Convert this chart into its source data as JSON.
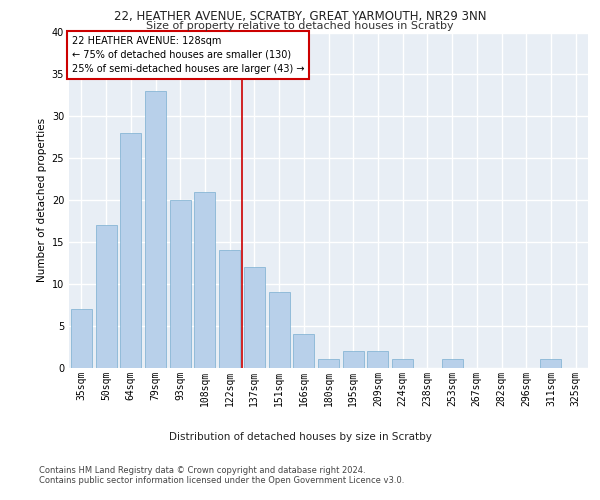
{
  "title1": "22, HEATHER AVENUE, SCRATBY, GREAT YARMOUTH, NR29 3NN",
  "title2": "Size of property relative to detached houses in Scratby",
  "xlabel": "Distribution of detached houses by size in Scratby",
  "ylabel": "Number of detached properties",
  "categories": [
    "35sqm",
    "50sqm",
    "64sqm",
    "79sqm",
    "93sqm",
    "108sqm",
    "122sqm",
    "137sqm",
    "151sqm",
    "166sqm",
    "180sqm",
    "195sqm",
    "209sqm",
    "224sqm",
    "238sqm",
    "253sqm",
    "267sqm",
    "282sqm",
    "296sqm",
    "311sqm",
    "325sqm"
  ],
  "values": [
    7,
    17,
    28,
    33,
    20,
    21,
    14,
    12,
    9,
    4,
    1,
    2,
    2,
    1,
    0,
    1,
    0,
    0,
    0,
    1,
    0
  ],
  "bar_color": "#b8d0ea",
  "bar_edge_color": "#7aaed0",
  "bg_color": "#e8eef5",
  "grid_color": "#ffffff",
  "vline_x": 6.5,
  "vline_color": "#cc0000",
  "annotation_text": "22 HEATHER AVENUE: 128sqm\n← 75% of detached houses are smaller (130)\n25% of semi-detached houses are larger (43) →",
  "annotation_box_color": "#ffffff",
  "annotation_box_edge": "#cc0000",
  "footer1": "Contains HM Land Registry data © Crown copyright and database right 2024.",
  "footer2": "Contains public sector information licensed under the Open Government Licence v3.0.",
  "ylim": [
    0,
    40
  ],
  "yticks": [
    0,
    5,
    10,
    15,
    20,
    25,
    30,
    35,
    40
  ],
  "title1_fontsize": 8.5,
  "title2_fontsize": 8.0,
  "ylabel_fontsize": 7.5,
  "xlabel_fontsize": 7.5,
  "tick_fontsize": 7.0,
  "ann_fontsize": 7.0,
  "footer_fontsize": 6.0
}
